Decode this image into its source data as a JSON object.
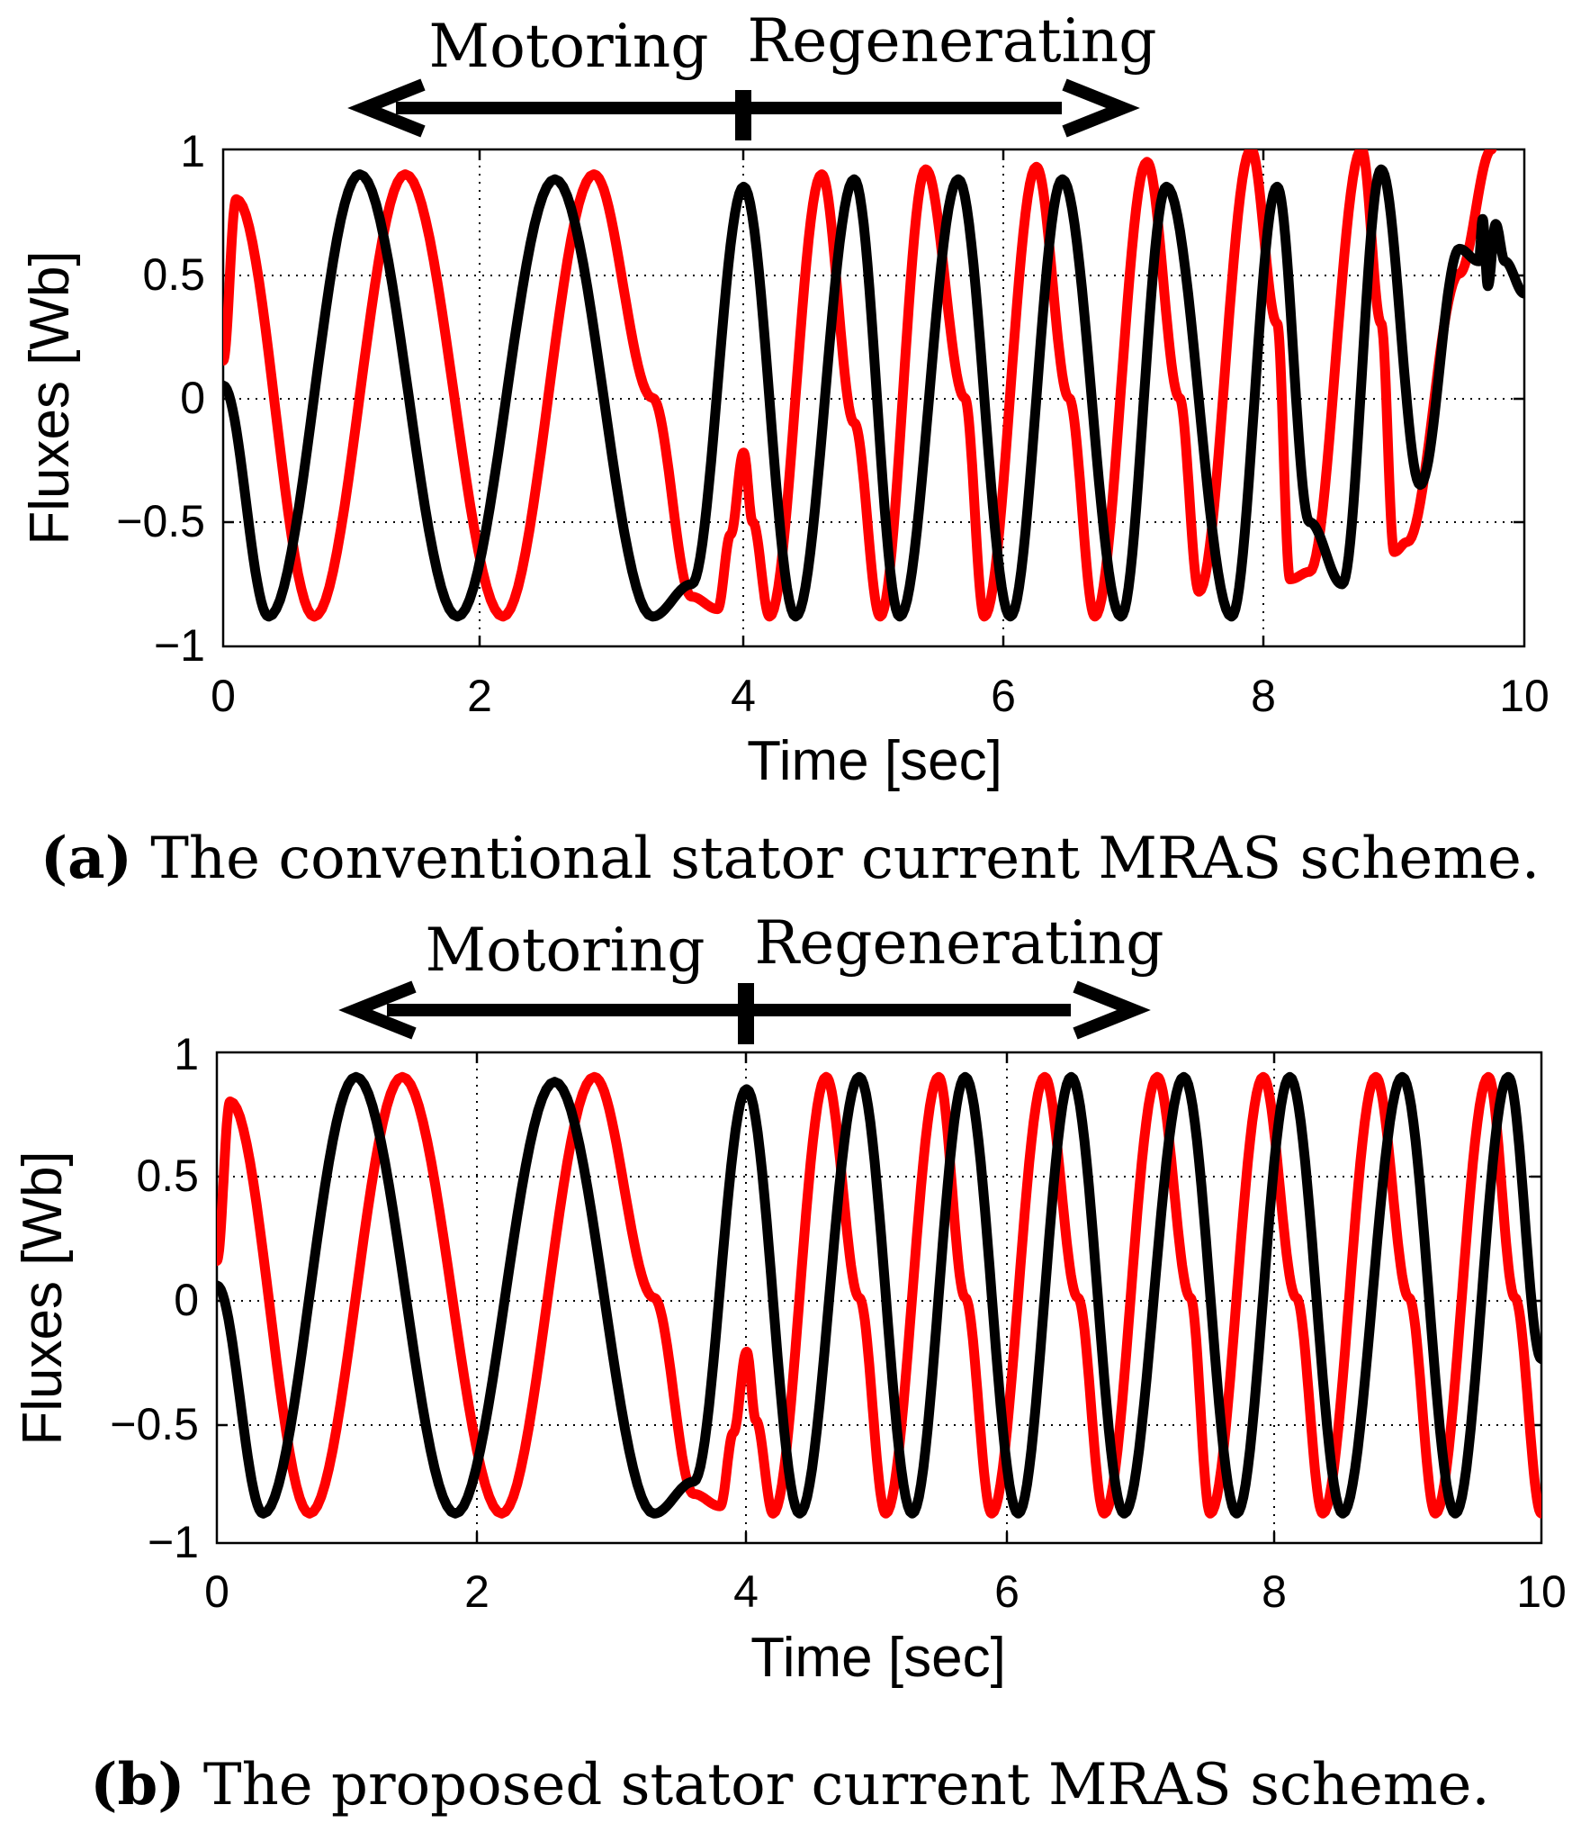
{
  "chart_data": [
    {
      "type": "line",
      "panel": "a",
      "caption_prefix": "(a)",
      "caption_text": " The conventional stator current MRAS scheme.",
      "xlabel": "Time [sec]",
      "ylabel": "Fluxes [Wb]",
      "xlim": [
        0,
        10
      ],
      "ylim": [
        -1,
        1
      ],
      "xticks": [
        0,
        2,
        4,
        6,
        8,
        10
      ],
      "yticks": [
        1,
        0.5,
        0,
        -0.5,
        -1
      ],
      "xtick_labels": [
        "0",
        "2",
        "4",
        "6",
        "8",
        "10"
      ],
      "ytick_labels": [
        "1",
        "0.5",
        "0",
        "−0.5",
        "−1"
      ],
      "grid": true,
      "phase_labels": {
        "motoring": "Motoring",
        "regenerating": "Regenerating"
      },
      "phase_arrow": {
        "start": 1.05,
        "boundary": 4.0,
        "end": 6.95
      },
      "series": [
        {
          "name": "flux-red",
          "color": "#ff0000",
          "x": [
            0.0,
            0.1,
            0.7,
            1.4,
            2.15,
            2.85,
            3.3,
            3.6,
            3.8,
            3.9,
            4.0,
            4.07,
            4.2,
            4.6,
            4.85,
            5.05,
            5.4,
            5.7,
            5.85,
            6.25,
            6.5,
            6.7,
            7.1,
            7.35,
            7.5,
            7.9,
            8.1,
            8.2,
            8.35,
            8.75,
            8.9,
            9.0,
            9.1,
            9.5,
            9.75
          ],
          "y": [
            0.15,
            0.8,
            -0.88,
            0.9,
            -0.88,
            0.9,
            0.0,
            -0.8,
            -0.85,
            -0.55,
            -0.22,
            -0.5,
            -0.88,
            0.9,
            -0.1,
            -0.88,
            0.92,
            0.0,
            -0.88,
            0.93,
            0.0,
            -0.88,
            0.95,
            0.0,
            -0.78,
            1.0,
            0.3,
            -0.73,
            -0.7,
            1.0,
            0.3,
            -0.62,
            -0.58,
            0.5,
            1.0
          ]
        },
        {
          "name": "flux-black",
          "color": "#000000",
          "x": [
            0.0,
            0.35,
            1.05,
            1.8,
            2.55,
            3.3,
            3.6,
            4.0,
            4.4,
            4.85,
            5.2,
            5.65,
            6.05,
            6.45,
            6.9,
            7.25,
            7.75,
            8.1,
            8.35,
            8.6,
            8.9,
            9.2,
            9.5,
            9.65,
            9.68,
            9.72,
            9.78,
            9.85,
            10.0
          ],
          "y": [
            0.05,
            -0.88,
            0.9,
            -0.88,
            0.88,
            -0.88,
            -0.75,
            0.85,
            -0.88,
            0.88,
            -0.88,
            0.88,
            -0.88,
            0.88,
            -0.88,
            0.85,
            -0.88,
            0.85,
            -0.5,
            -0.75,
            0.92,
            -0.35,
            0.6,
            0.55,
            0.72,
            0.45,
            0.7,
            0.55,
            0.42
          ]
        }
      ]
    },
    {
      "type": "line",
      "panel": "b",
      "caption_prefix": "(b)",
      "caption_text": " The proposed stator current MRAS scheme.",
      "xlabel": "Time [sec]",
      "ylabel": "Fluxes [Wb]",
      "xlim": [
        0,
        10
      ],
      "ylim": [
        -1,
        1
      ],
      "xticks": [
        0,
        2,
        4,
        6,
        8,
        10
      ],
      "yticks": [
        1,
        0.5,
        0,
        -0.5,
        -1
      ],
      "xtick_labels": [
        "0",
        "2",
        "4",
        "6",
        "8",
        "10"
      ],
      "ytick_labels": [
        "1",
        "0.5",
        "0",
        "−0.5",
        "−1"
      ],
      "grid": true,
      "phase_labels": {
        "motoring": "Motoring",
        "regenerating": "Regenerating"
      },
      "phase_arrow": {
        "start": 1.05,
        "boundary": 4.0,
        "end": 6.95
      },
      "series": [
        {
          "name": "flux-red",
          "color": "#ff0000",
          "x": [
            0.0,
            0.1,
            0.7,
            1.4,
            2.15,
            2.85,
            3.3,
            3.6,
            3.8,
            3.9,
            4.0,
            4.07,
            4.2,
            4.6,
            4.85,
            5.05,
            5.45,
            5.65,
            5.85,
            6.25,
            6.5,
            6.7,
            7.1,
            7.35,
            7.5,
            7.9,
            8.15,
            8.35,
            8.75,
            9.0,
            9.2,
            9.6,
            9.8,
            10.0
          ],
          "y": [
            0.15,
            0.8,
            -0.88,
            0.9,
            -0.88,
            0.9,
            0.0,
            -0.8,
            -0.85,
            -0.55,
            -0.22,
            -0.5,
            -0.88,
            0.9,
            0.0,
            -0.88,
            0.9,
            0.0,
            -0.88,
            0.9,
            0.0,
            -0.88,
            0.9,
            0.0,
            -0.88,
            0.9,
            0.0,
            -0.88,
            0.9,
            0.0,
            -0.88,
            0.9,
            0.0,
            -0.88
          ]
        },
        {
          "name": "flux-black",
          "color": "#000000",
          "x": [
            0.0,
            0.35,
            1.05,
            1.8,
            2.55,
            3.3,
            3.6,
            4.0,
            4.4,
            4.85,
            5.25,
            5.65,
            6.05,
            6.45,
            6.85,
            7.3,
            7.7,
            8.1,
            8.5,
            8.95,
            9.35,
            9.75,
            10.0
          ],
          "y": [
            0.05,
            -0.88,
            0.9,
            -0.88,
            0.88,
            -0.88,
            -0.75,
            0.85,
            -0.88,
            0.9,
            -0.88,
            0.9,
            -0.88,
            0.9,
            -0.88,
            0.9,
            -0.88,
            0.9,
            -0.88,
            0.9,
            -0.88,
            0.9,
            -0.25
          ]
        }
      ]
    }
  ]
}
